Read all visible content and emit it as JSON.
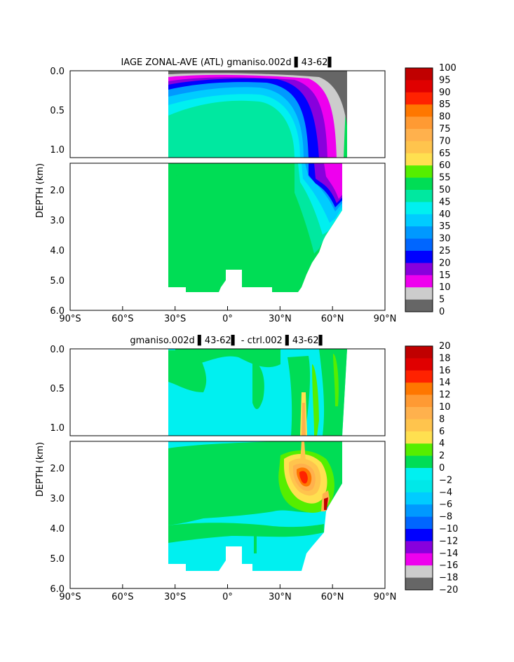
{
  "chart_data": [
    {
      "type": "heatmap",
      "title": "IAGE ZONAL-AVE (ATL) gmaniso.002d ▌43-62▌",
      "ylabel": "DEPTH (km)",
      "x_ticks": [
        "90°S",
        "60°S",
        "30°S",
        "0°",
        "30°N",
        "60°N",
        "90°N"
      ],
      "upper_y_ticks": [
        "0.0",
        "0.5",
        "1.0"
      ],
      "lower_y_ticks": [
        "2.0",
        "3.0",
        "4.0",
        "5.0",
        "6.0"
      ],
      "colorbar_labels": [
        "100",
        "95",
        "90",
        "85",
        "80",
        "75",
        "70",
        "65",
        "60",
        "55",
        "50",
        "45",
        "40",
        "35",
        "30",
        "25",
        "20",
        "15",
        "10",
        "5",
        "0"
      ],
      "colorbar_colors": [
        "#c00000",
        "#e00000",
        "#ff2200",
        "#ff7700",
        "#ff9a33",
        "#ffb14d",
        "#ffc44d",
        "#ffe050",
        "#55ee00",
        "#00dd55",
        "#00e8a0",
        "#00f0f0",
        "#00ccff",
        "#0099ff",
        "#0066ff",
        "#0000ff",
        "#8800dd",
        "#ee00ee",
        "#cccccc",
        "#666666"
      ]
    },
    {
      "type": "heatmap",
      "title": "gmaniso.002d ▌43-62▌ - ctrl.002 ▌43-62▌",
      "ylabel": "DEPTH (km)",
      "x_ticks": [
        "90°S",
        "60°S",
        "30°S",
        "0°",
        "30°N",
        "60°N",
        "90°N"
      ],
      "upper_y_ticks": [
        "0.0",
        "0.5",
        "1.0"
      ],
      "lower_y_ticks": [
        "2.0",
        "3.0",
        "4.0",
        "5.0",
        "6.0"
      ],
      "colorbar_labels": [
        "20",
        "18",
        "16",
        "14",
        "12",
        "10",
        "8",
        "6",
        "4",
        "2",
        "0",
        "−2",
        "−4",
        "−6",
        "−8",
        "−10",
        "−12",
        "−14",
        "−16",
        "−18",
        "−20"
      ],
      "colorbar_colors": [
        "#c00000",
        "#e00000",
        "#ff2200",
        "#ff7700",
        "#ff9a33",
        "#ffb14d",
        "#ffc44d",
        "#ffe050",
        "#55ee00",
        "#00dd55",
        "#00f0f0",
        "#00e8e8",
        "#00ccff",
        "#0099ff",
        "#0066ff",
        "#0000ff",
        "#8800dd",
        "#ee00ee",
        "#cccccc",
        "#666666"
      ]
    }
  ]
}
